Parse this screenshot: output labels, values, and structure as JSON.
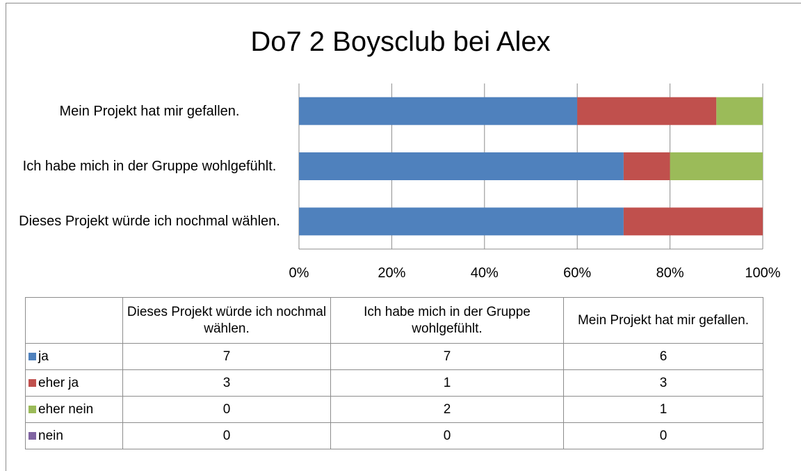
{
  "chart_data": {
    "type": "bar",
    "orientation": "horizontal",
    "stacking": "percent",
    "title": "Do7 2 Boysclub bei Alex",
    "categories": [
      "Dieses Projekt würde ich nochmal wählen.",
      "Ich habe mich in der Gruppe wohlgefühlt.",
      "Mein Projekt hat mir gefallen."
    ],
    "series": [
      {
        "name": "ja",
        "color": "#4f81bd",
        "values": [
          7,
          7,
          6
        ]
      },
      {
        "name": "eher ja",
        "color": "#c0504d",
        "values": [
          3,
          1,
          3
        ]
      },
      {
        "name": "eher nein",
        "color": "#9bbb59",
        "values": [
          0,
          2,
          1
        ]
      },
      {
        "name": "nein",
        "color": "#8064a2",
        "values": [
          0,
          0,
          0
        ]
      }
    ],
    "xlim": [
      0,
      100
    ],
    "xticks": [
      {
        "value": 0,
        "label": "0%"
      },
      {
        "value": 20,
        "label": "20%"
      },
      {
        "value": 40,
        "label": "40%"
      },
      {
        "value": 60,
        "label": "60%"
      },
      {
        "value": 80,
        "label": "80%"
      },
      {
        "value": 100,
        "label": "100%"
      }
    ],
    "grid": true
  }
}
